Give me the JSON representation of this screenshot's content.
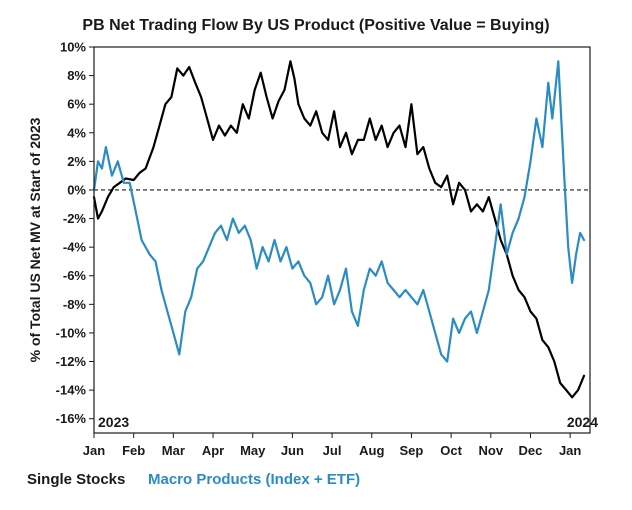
{
  "chart_data": {
    "type": "line",
    "title": "PB Net Trading Flow By US Product (Positive Value = Buying)",
    "xlabel": "",
    "ylabel": "% of Total US Net MV at Start of 2023",
    "ylim": [
      -17,
      10
    ],
    "yticks": [
      10,
      8,
      6,
      4,
      2,
      0,
      -2,
      -4,
      -6,
      -8,
      -10,
      -12,
      -14,
      -16
    ],
    "ytick_labels": [
      "10%",
      "8%",
      "6%",
      "4%",
      "2%",
      "0%",
      "-2%",
      "-4%",
      "-6%",
      "-8%",
      "-10%",
      "-12%",
      "-14%",
      "-16%"
    ],
    "xlim": [
      0,
      12.5
    ],
    "xticks": [
      0,
      1,
      2,
      3,
      4,
      5,
      6,
      7,
      8,
      9,
      10,
      11,
      12
    ],
    "xtick_labels": [
      "Jan",
      "Feb",
      "Mar",
      "Apr",
      "May",
      "Jun",
      "Jul",
      "Aug",
      "Sep",
      "Oct",
      "Nov",
      "Dec",
      "Jan"
    ],
    "start_year_label": "2023",
    "end_year_label": "2024",
    "zero_line": "dashed",
    "legend_position": "bottom-left",
    "series": [
      {
        "name": "Single Stocks",
        "color": "#000000",
        "x": [
          0,
          0.1,
          0.2,
          0.35,
          0.5,
          0.65,
          0.8,
          1.0,
          1.15,
          1.3,
          1.5,
          1.65,
          1.8,
          1.95,
          2.1,
          2.25,
          2.4,
          2.55,
          2.7,
          2.85,
          3.0,
          3.15,
          3.3,
          3.45,
          3.6,
          3.75,
          3.9,
          4.05,
          4.2,
          4.35,
          4.5,
          4.65,
          4.8,
          4.95,
          5.05,
          5.15,
          5.3,
          5.45,
          5.6,
          5.75,
          5.9,
          6.05,
          6.2,
          6.35,
          6.5,
          6.65,
          6.8,
          6.95,
          7.1,
          7.25,
          7.4,
          7.55,
          7.7,
          7.85,
          8.0,
          8.15,
          8.3,
          8.45,
          8.6,
          8.75,
          8.9,
          9.05,
          9.2,
          9.35,
          9.5,
          9.65,
          9.8,
          9.95,
          10.1,
          10.25,
          10.4,
          10.55,
          10.7,
          10.85,
          11.0,
          11.15,
          11.3,
          11.45,
          11.6,
          11.75,
          11.9,
          12.05,
          12.2,
          12.35
        ],
        "values": [
          -0.5,
          -2.0,
          -1.5,
          -0.5,
          0.2,
          0.5,
          0.8,
          0.7,
          1.2,
          1.5,
          3.0,
          4.5,
          6.0,
          6.5,
          8.5,
          8.0,
          8.6,
          7.5,
          6.5,
          5.0,
          3.5,
          4.5,
          3.8,
          4.5,
          4.0,
          6.0,
          5.0,
          7.0,
          8.2,
          6.5,
          5.0,
          6.2,
          7.0,
          9.0,
          7.8,
          6.0,
          5.0,
          4.5,
          5.5,
          4.0,
          3.5,
          5.5,
          3.0,
          4.0,
          2.5,
          3.5,
          3.5,
          5.0,
          3.5,
          4.5,
          3.0,
          4.0,
          4.5,
          3.0,
          6.0,
          2.5,
          3.0,
          1.5,
          0.5,
          0.2,
          1.0,
          -1.0,
          0.5,
          0.0,
          -1.5,
          -1.0,
          -1.5,
          -0.5,
          -2.0,
          -3.5,
          -4.5,
          -6.0,
          -7.0,
          -7.5,
          -8.5,
          -9.0,
          -10.5,
          -11.0,
          -12.0,
          -13.5,
          -14.0,
          -14.5,
          -14.0,
          -13.0
        ]
      },
      {
        "name": "Macro Products (Index + ETF)",
        "color": "#2b8cc4",
        "x": [
          0,
          0.1,
          0.2,
          0.3,
          0.45,
          0.6,
          0.75,
          0.9,
          1.05,
          1.2,
          1.4,
          1.55,
          1.7,
          1.85,
          2.0,
          2.15,
          2.3,
          2.45,
          2.6,
          2.75,
          2.9,
          3.05,
          3.2,
          3.35,
          3.5,
          3.65,
          3.8,
          3.95,
          4.1,
          4.25,
          4.4,
          4.55,
          4.7,
          4.85,
          5.0,
          5.15,
          5.3,
          5.45,
          5.6,
          5.75,
          5.9,
          6.05,
          6.2,
          6.35,
          6.5,
          6.65,
          6.8,
          6.95,
          7.1,
          7.25,
          7.4,
          7.55,
          7.7,
          7.85,
          8.0,
          8.15,
          8.3,
          8.45,
          8.6,
          8.75,
          8.9,
          9.05,
          9.2,
          9.35,
          9.5,
          9.65,
          9.8,
          9.95,
          10.1,
          10.25,
          10.4,
          10.55,
          10.7,
          10.85,
          11.0,
          11.15,
          11.3,
          11.45,
          11.55,
          11.7,
          11.85,
          11.95,
          12.05,
          12.15,
          12.25,
          12.35
        ],
        "values": [
          0,
          2.0,
          1.5,
          3.0,
          1.0,
          2.0,
          0.5,
          0.5,
          -1.5,
          -3.5,
          -4.5,
          -5.0,
          -7.0,
          -8.5,
          -10.0,
          -11.5,
          -8.5,
          -7.5,
          -5.5,
          -5.0,
          -4.0,
          -3.0,
          -2.5,
          -3.5,
          -2.0,
          -3.0,
          -2.5,
          -3.5,
          -5.5,
          -4.0,
          -5.0,
          -3.5,
          -5.0,
          -4.0,
          -5.5,
          -5.0,
          -6.0,
          -6.5,
          -8.0,
          -7.5,
          -6.0,
          -8.0,
          -7.0,
          -5.5,
          -8.5,
          -9.5,
          -7.0,
          -5.5,
          -6.0,
          -5.0,
          -6.5,
          -7.0,
          -7.5,
          -7.0,
          -7.5,
          -8.0,
          -7.0,
          -8.5,
          -10.0,
          -11.5,
          -12.0,
          -9.0,
          -10.0,
          -9.0,
          -8.5,
          -10.0,
          -8.5,
          -7.0,
          -4.0,
          -1.0,
          -4.5,
          -3.0,
          -2.0,
          -0.5,
          2.0,
          5.0,
          3.0,
          7.5,
          5.0,
          9.0,
          1.0,
          -4.0,
          -6.5,
          -4.5,
          -3.0,
          -3.5
        ]
      }
    ]
  }
}
